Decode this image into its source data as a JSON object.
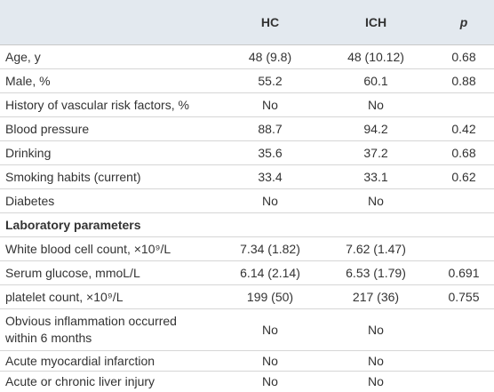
{
  "table": {
    "header": [
      "HC",
      "ICH",
      "p"
    ],
    "rows": [
      [
        "Age, y",
        "48 (9.8)",
        "48 (10.12)",
        "0.68"
      ],
      [
        "Male, %",
        "55.2",
        "60.1",
        "0.88"
      ],
      [
        "History of vascular risk factors, %",
        "No",
        "No",
        null
      ],
      [
        "Blood pressure",
        "88.7",
        "94.2",
        "0.42"
      ],
      [
        "Drinking",
        "35.6",
        "37.2",
        "0.68"
      ],
      [
        "Smoking habits (current)",
        "33.4",
        "33.1",
        "0.62"
      ],
      [
        "Diabetes",
        "No",
        "No",
        null
      ],
      [
        "Laboratory parameters"
      ],
      [
        "White blood cell count, ×10⁹/L",
        "7.34 (1.82)",
        "7.62 (1.47)",
        null
      ],
      [
        "Serum glucose, mmoL/L",
        "6.14 (2.14)",
        "6.53 (1.79)",
        "0.691"
      ],
      [
        "platelet count, ×10⁹/L",
        "199 (50)",
        "217 (36)",
        "0.755"
      ],
      [
        "Obvious inflammation occurred within 6 months",
        "No",
        "No",
        null
      ],
      [
        "Acute myocardial infarction",
        "No",
        "No",
        null
      ],
      [
        "Acute or chronic liver injury",
        "No",
        "No",
        null
      ]
    ]
  }
}
